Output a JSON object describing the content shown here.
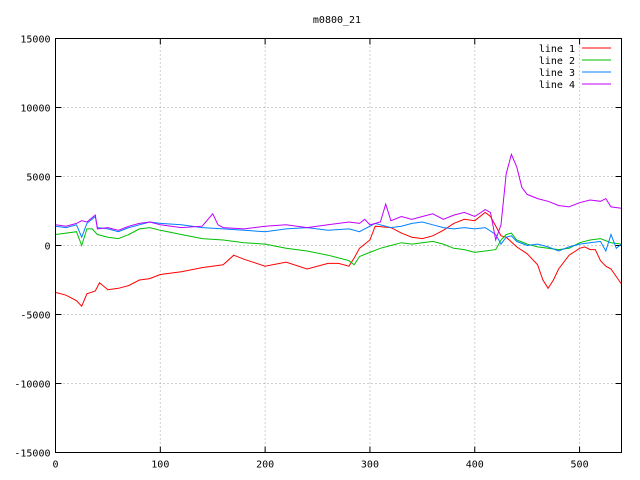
{
  "chart_data": {
    "type": "line",
    "title": "m0800_21",
    "xlabel": "",
    "ylabel": "",
    "xlim": [
      0,
      540
    ],
    "ylim": [
      -15000,
      15000
    ],
    "xticks": [
      0,
      100,
      200,
      300,
      400,
      500
    ],
    "yticks": [
      -15000,
      -10000,
      -5000,
      0,
      5000,
      10000,
      15000
    ],
    "grid": true,
    "legend_position": "top-right",
    "series": [
      {
        "name": "line 1",
        "color": "#ff0000",
        "points": [
          [
            0,
            -3400
          ],
          [
            10,
            -3600
          ],
          [
            20,
            -4000
          ],
          [
            25,
            -4400
          ],
          [
            30,
            -3500
          ],
          [
            38,
            -3300
          ],
          [
            42,
            -2700
          ],
          [
            50,
            -3200
          ],
          [
            60,
            -3100
          ],
          [
            70,
            -2900
          ],
          [
            80,
            -2500
          ],
          [
            90,
            -2400
          ],
          [
            100,
            -2100
          ],
          [
            120,
            -1900
          ],
          [
            140,
            -1600
          ],
          [
            160,
            -1400
          ],
          [
            170,
            -700
          ],
          [
            180,
            -1000
          ],
          [
            200,
            -1500
          ],
          [
            220,
            -1200
          ],
          [
            240,
            -1700
          ],
          [
            260,
            -1300
          ],
          [
            270,
            -1300
          ],
          [
            280,
            -1500
          ],
          [
            285,
            -900
          ],
          [
            290,
            -200
          ],
          [
            300,
            400
          ],
          [
            305,
            1400
          ],
          [
            320,
            1300
          ],
          [
            330,
            900
          ],
          [
            340,
            600
          ],
          [
            350,
            500
          ],
          [
            360,
            700
          ],
          [
            370,
            1100
          ],
          [
            380,
            1600
          ],
          [
            390,
            1900
          ],
          [
            400,
            1800
          ],
          [
            410,
            2400
          ],
          [
            415,
            2100
          ],
          [
            425,
            700
          ],
          [
            430,
            600
          ],
          [
            440,
            -100
          ],
          [
            450,
            -600
          ],
          [
            460,
            -1400
          ],
          [
            465,
            -2500
          ],
          [
            470,
            -3100
          ],
          [
            475,
            -2500
          ],
          [
            480,
            -1700
          ],
          [
            490,
            -700
          ],
          [
            500,
            -200
          ],
          [
            505,
            -100
          ],
          [
            510,
            -300
          ],
          [
            515,
            -300
          ],
          [
            520,
            -1100
          ],
          [
            525,
            -1500
          ],
          [
            530,
            -1700
          ],
          [
            540,
            -2800
          ]
        ]
      },
      {
        "name": "line 2",
        "color": "#00c000",
        "points": [
          [
            0,
            800
          ],
          [
            10,
            900
          ],
          [
            20,
            1000
          ],
          [
            25,
            0
          ],
          [
            30,
            1200
          ],
          [
            35,
            1200
          ],
          [
            40,
            800
          ],
          [
            50,
            600
          ],
          [
            60,
            500
          ],
          [
            70,
            800
          ],
          [
            80,
            1200
          ],
          [
            90,
            1300
          ],
          [
            100,
            1100
          ],
          [
            120,
            800
          ],
          [
            140,
            500
          ],
          [
            160,
            400
          ],
          [
            180,
            200
          ],
          [
            200,
            100
          ],
          [
            220,
            -200
          ],
          [
            240,
            -400
          ],
          [
            260,
            -700
          ],
          [
            270,
            -900
          ],
          [
            280,
            -1100
          ],
          [
            285,
            -1400
          ],
          [
            290,
            -800
          ],
          [
            300,
            -500
          ],
          [
            310,
            -200
          ],
          [
            320,
            0
          ],
          [
            330,
            200
          ],
          [
            340,
            100
          ],
          [
            350,
            200
          ],
          [
            360,
            300
          ],
          [
            370,
            100
          ],
          [
            380,
            -200
          ],
          [
            390,
            -300
          ],
          [
            400,
            -500
          ],
          [
            410,
            -400
          ],
          [
            420,
            -300
          ],
          [
            425,
            400
          ],
          [
            430,
            800
          ],
          [
            435,
            900
          ],
          [
            440,
            400
          ],
          [
            450,
            100
          ],
          [
            460,
            -100
          ],
          [
            470,
            -200
          ],
          [
            480,
            -300
          ],
          [
            490,
            -200
          ],
          [
            500,
            200
          ],
          [
            510,
            400
          ],
          [
            520,
            500
          ],
          [
            530,
            200
          ],
          [
            540,
            100
          ]
        ]
      },
      {
        "name": "line 3",
        "color": "#0080ff",
        "points": [
          [
            0,
            1400
          ],
          [
            10,
            1300
          ],
          [
            20,
            1500
          ],
          [
            25,
            600
          ],
          [
            30,
            1600
          ],
          [
            38,
            2100
          ],
          [
            40,
            1300
          ],
          [
            50,
            1200
          ],
          [
            60,
            1000
          ],
          [
            70,
            1300
          ],
          [
            80,
            1500
          ],
          [
            90,
            1700
          ],
          [
            100,
            1600
          ],
          [
            120,
            1500
          ],
          [
            140,
            1300
          ],
          [
            160,
            1200
          ],
          [
            180,
            1100
          ],
          [
            200,
            1000
          ],
          [
            220,
            1200
          ],
          [
            240,
            1300
          ],
          [
            260,
            1100
          ],
          [
            280,
            1200
          ],
          [
            290,
            1000
          ],
          [
            300,
            1400
          ],
          [
            305,
            1600
          ],
          [
            310,
            1500
          ],
          [
            320,
            1300
          ],
          [
            330,
            1400
          ],
          [
            340,
            1600
          ],
          [
            350,
            1700
          ],
          [
            360,
            1500
          ],
          [
            370,
            1300
          ],
          [
            380,
            1200
          ],
          [
            390,
            1300
          ],
          [
            400,
            1200
          ],
          [
            410,
            1300
          ],
          [
            420,
            800
          ],
          [
            425,
            100
          ],
          [
            430,
            600
          ],
          [
            435,
            700
          ],
          [
            440,
            300
          ],
          [
            450,
            0
          ],
          [
            460,
            100
          ],
          [
            470,
            -100
          ],
          [
            480,
            -400
          ],
          [
            490,
            -100
          ],
          [
            500,
            100
          ],
          [
            510,
            200
          ],
          [
            520,
            300
          ],
          [
            525,
            -400
          ],
          [
            530,
            800
          ],
          [
            535,
            -200
          ],
          [
            540,
            100
          ]
        ]
      },
      {
        "name": "line 4",
        "color": "#c000ff",
        "points": [
          [
            0,
            1500
          ],
          [
            10,
            1400
          ],
          [
            20,
            1600
          ],
          [
            25,
            1800
          ],
          [
            30,
            1700
          ],
          [
            38,
            2200
          ],
          [
            40,
            1200
          ],
          [
            50,
            1300
          ],
          [
            60,
            1100
          ],
          [
            70,
            1400
          ],
          [
            80,
            1600
          ],
          [
            90,
            1700
          ],
          [
            100,
            1500
          ],
          [
            120,
            1300
          ],
          [
            140,
            1400
          ],
          [
            150,
            2300
          ],
          [
            155,
            1500
          ],
          [
            160,
            1300
          ],
          [
            180,
            1200
          ],
          [
            200,
            1400
          ],
          [
            220,
            1500
          ],
          [
            240,
            1300
          ],
          [
            260,
            1500
          ],
          [
            280,
            1700
          ],
          [
            290,
            1600
          ],
          [
            295,
            1900
          ],
          [
            300,
            1500
          ],
          [
            310,
            1700
          ],
          [
            315,
            3000
          ],
          [
            320,
            1800
          ],
          [
            330,
            2100
          ],
          [
            340,
            1900
          ],
          [
            350,
            2100
          ],
          [
            360,
            2300
          ],
          [
            370,
            1900
          ],
          [
            380,
            2200
          ],
          [
            390,
            2400
          ],
          [
            400,
            2100
          ],
          [
            410,
            2600
          ],
          [
            415,
            2400
          ],
          [
            420,
            400
          ],
          [
            425,
            1500
          ],
          [
            430,
            5200
          ],
          [
            435,
            6600
          ],
          [
            440,
            5700
          ],
          [
            445,
            4200
          ],
          [
            450,
            3700
          ],
          [
            460,
            3400
          ],
          [
            470,
            3200
          ],
          [
            480,
            2900
          ],
          [
            490,
            2800
          ],
          [
            500,
            3100
          ],
          [
            510,
            3300
          ],
          [
            520,
            3200
          ],
          [
            525,
            3400
          ],
          [
            530,
            2800
          ],
          [
            540,
            2700
          ]
        ]
      }
    ]
  }
}
